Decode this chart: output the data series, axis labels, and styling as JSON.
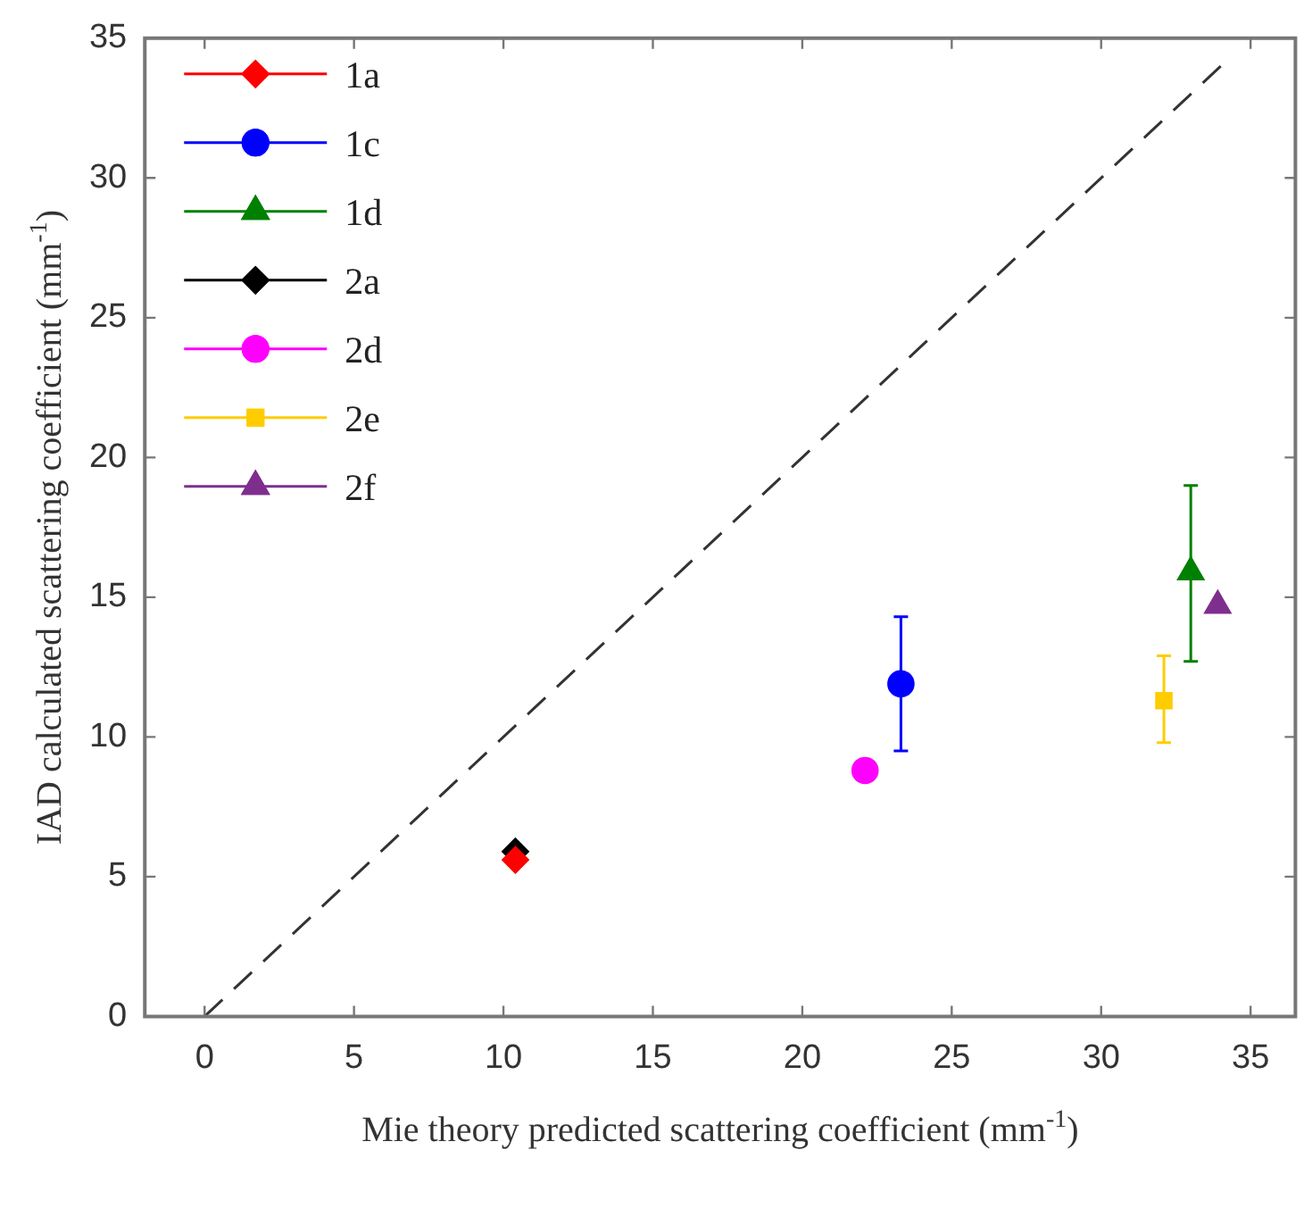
{
  "chart_data": {
    "type": "scatter",
    "xlabel": "Mie theory predicted scattering coefficient (mm$^{-1}$)",
    "ylabel": "IAD calculated scattering coefficient (mm$^{-1}$)",
    "xlim": [
      -2,
      36.5
    ],
    "ylim": [
      0,
      35
    ],
    "xticks": [
      0,
      5,
      10,
      15,
      20,
      25,
      30,
      35
    ],
    "yticks": [
      0,
      5,
      10,
      15,
      20,
      25,
      30,
      35
    ],
    "grid": false,
    "legend": "top left",
    "series": [
      {
        "name": "1a",
        "color": "#ff0000",
        "marker": "diamond",
        "x": [
          10.4
        ],
        "values": [
          5.6
        ]
      },
      {
        "name": "1c",
        "color": "#0000ff",
        "marker": "circle",
        "x": [
          23.3
        ],
        "values": [
          11.9
        ],
        "errors": [
          [
            9.5,
            14.3
          ]
        ]
      },
      {
        "name": "1d",
        "color": "#008000",
        "marker": "triangle",
        "x": [
          33.0
        ],
        "values": [
          15.9
        ],
        "errors": [
          [
            12.7,
            19.0
          ]
        ]
      },
      {
        "name": "2a",
        "color": "#000000",
        "marker": "diamond",
        "x": [
          10.4
        ],
        "values": [
          5.9
        ]
      },
      {
        "name": "2d",
        "color": "#ff00ff",
        "marker": "circle",
        "x": [
          22.1
        ],
        "values": [
          8.8
        ]
      },
      {
        "name": "2e",
        "color": "#ffcc00",
        "marker": "square",
        "x": [
          32.1
        ],
        "values": [
          11.3
        ],
        "errors": [
          [
            9.8,
            12.9
          ]
        ]
      },
      {
        "name": "2f",
        "color": "#7e2f8e",
        "marker": "triangle",
        "x": [
          33.9
        ],
        "values": [
          14.7
        ]
      },
      {
        "type": "line",
        "color": "#333333",
        "marker": "none",
        "line_style": "dashed",
        "x": [
          0,
          34
        ],
        "values": [
          0,
          34
        ]
      }
    ]
  }
}
